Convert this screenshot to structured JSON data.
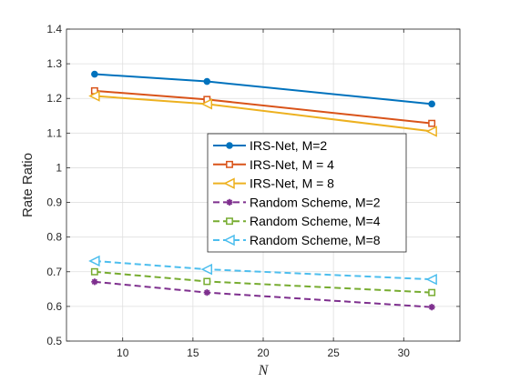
{
  "chart_data": {
    "type": "line",
    "xlabel": "N",
    "ylabel": "Rate Ratio",
    "xlim": [
      6,
      34
    ],
    "ylim": [
      0.5,
      1.4
    ],
    "xticks": [
      10,
      15,
      20,
      25,
      30
    ],
    "yticks": [
      0.5,
      0.6,
      0.7,
      0.8,
      0.9,
      1,
      1.1,
      1.2,
      1.3,
      1.4
    ],
    "xtick_labels": [
      "10",
      "15",
      "20",
      "25",
      "30"
    ],
    "ytick_labels": [
      "0.5",
      "0.6",
      "0.7",
      "0.8",
      "0.9",
      "1",
      "1.1",
      "1.2",
      "1.3",
      "1.4"
    ],
    "grid": true,
    "legend_position": "center",
    "x": [
      8,
      16,
      32
    ],
    "series": [
      {
        "name": "IRS-Net, M=2",
        "values": [
          1.27,
          1.249,
          1.184
        ],
        "color": "#0072BD",
        "marker": "circle",
        "style": "solid"
      },
      {
        "name": "IRS-Net, M = 4",
        "values": [
          1.222,
          1.197,
          1.128
        ],
        "color": "#D95319",
        "marker": "square",
        "style": "solid"
      },
      {
        "name": "IRS-Net, M = 8",
        "values": [
          1.207,
          1.184,
          1.105
        ],
        "color": "#EDB120",
        "marker": "triangle-left",
        "style": "solid"
      },
      {
        "name": "Random Scheme, M=2",
        "values": [
          0.671,
          0.64,
          0.598
        ],
        "color": "#7E2F8E",
        "marker": "asterisk",
        "style": "dashed"
      },
      {
        "name": "Random Scheme, M=4",
        "values": [
          0.7,
          0.672,
          0.64
        ],
        "color": "#77AC30",
        "marker": "square",
        "style": "dashed"
      },
      {
        "name": "Random Scheme, M=8",
        "values": [
          0.731,
          0.707,
          0.678
        ],
        "color": "#4DBEEE",
        "marker": "triangle-left",
        "style": "dashed"
      }
    ]
  }
}
